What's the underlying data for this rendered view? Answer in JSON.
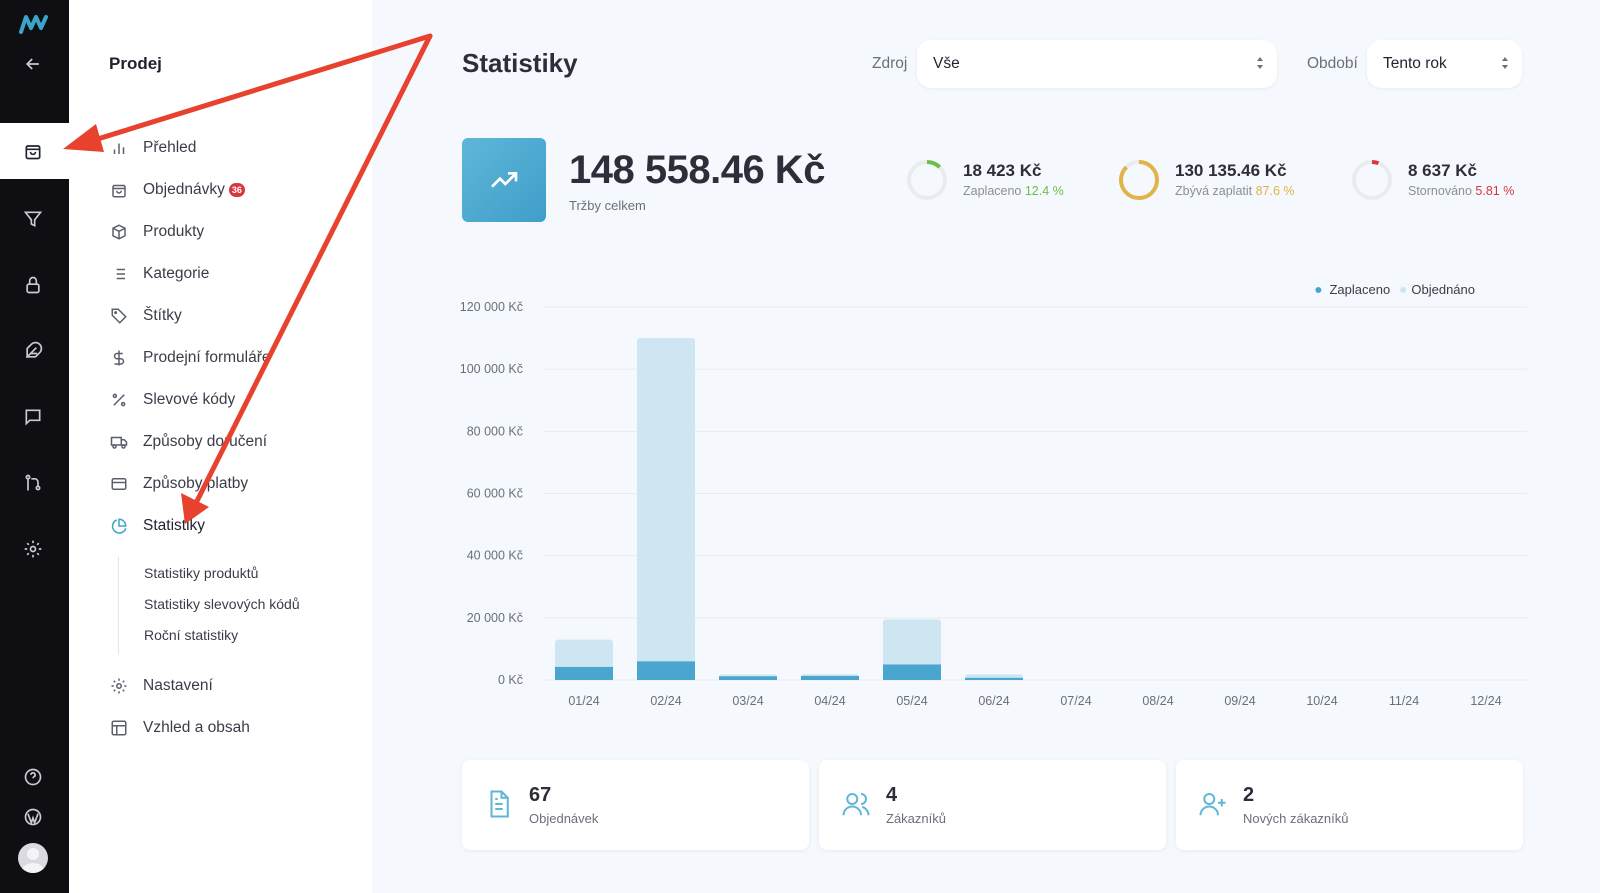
{
  "rail": {
    "items": [
      "back-icon",
      "shopping-bag-icon",
      "filter-icon",
      "lock-icon",
      "feather-icon",
      "chat-icon",
      "git-merge-icon",
      "settings-icon"
    ],
    "bottom": [
      "help-icon",
      "wordpress-icon",
      "avatar"
    ]
  },
  "sidebar": {
    "title": "Prodej",
    "items": [
      {
        "label": "Přehled",
        "icon": "bar-chart-icon"
      },
      {
        "label": "Objednávky",
        "icon": "bag-icon",
        "badge": "36"
      },
      {
        "label": "Produkty",
        "icon": "box-icon"
      },
      {
        "label": "Kategorie",
        "icon": "list-icon"
      },
      {
        "label": "Štítky",
        "icon": "tag-icon"
      },
      {
        "label": "Prodejní formuláře",
        "icon": "dollar-icon"
      },
      {
        "label": "Slevové kódy",
        "icon": "percent-icon"
      },
      {
        "label": "Způsoby doručení",
        "icon": "truck-icon"
      },
      {
        "label": "Způsoby platby",
        "icon": "credit-card-icon"
      },
      {
        "label": "Statistiky",
        "icon": "pie-chart-icon",
        "active": true
      },
      {
        "label": "Nastavení",
        "icon": "gear-icon"
      },
      {
        "label": "Vzhled a obsah",
        "icon": "layout-icon"
      }
    ],
    "subitems": [
      "Statistiky produktů",
      "Statistiky slevových kódů",
      "Roční statistiky"
    ]
  },
  "header": {
    "title": "Statistiky",
    "source_label": "Zdroj",
    "source_value": "Vše",
    "period_label": "Období",
    "period_value": "Tento rok"
  },
  "kpi": {
    "total": "148 558.46 Kč",
    "total_label": "Tržby celkem",
    "stats": [
      {
        "value": "18 423 Kč",
        "label": "Zaplaceno",
        "pct": "12.4 %",
        "fraction": 0.124,
        "color": "#6cbf4b"
      },
      {
        "value": "130 135.46 Kč",
        "label": "Zbývá zaplatit",
        "pct": "87.6 %",
        "fraction": 0.876,
        "color": "#e0b449"
      },
      {
        "value": "8 637 Kč",
        "label": "Stornováno",
        "pct": "5.81 %",
        "fraction": 0.0581,
        "color": "#d9363e"
      }
    ]
  },
  "chart_data": {
    "type": "bar",
    "categories": [
      "01/24",
      "02/24",
      "03/24",
      "04/24",
      "05/24",
      "06/24",
      "07/24",
      "08/24",
      "09/24",
      "10/24",
      "11/24",
      "12/24"
    ],
    "series": [
      {
        "name": "Zaplaceno",
        "values": [
          4200,
          6000,
          1200,
          1300,
          5000,
          700,
          0,
          0,
          0,
          0,
          0,
          0
        ],
        "color": "#4aa6cf"
      },
      {
        "name": "Objednáno",
        "values": [
          13000,
          110000,
          1800,
          1900,
          19500,
          1800,
          0,
          0,
          0,
          0,
          0,
          0
        ],
        "color": "#cde6f2"
      }
    ],
    "yticks": [
      "0 Kč",
      "20 000 Kč",
      "40 000 Kč",
      "60 000 Kč",
      "80 000 Kč",
      "100 000 Kč",
      "120 000 Kč"
    ],
    "ylim": [
      0,
      120000
    ],
    "grid": true,
    "legend": "top-right"
  },
  "cards": [
    {
      "value": "67",
      "label": "Objednávek",
      "icon": "document-icon"
    },
    {
      "value": "4",
      "label": "Zákazníků",
      "icon": "users-icon"
    },
    {
      "value": "2",
      "label": "Nových zákazníků",
      "icon": "user-plus-icon"
    }
  ],
  "colors": {
    "accent": "#3aa5c9",
    "annotation_arrow": "#e8412e",
    "rail_bg": "#0f0f13"
  }
}
